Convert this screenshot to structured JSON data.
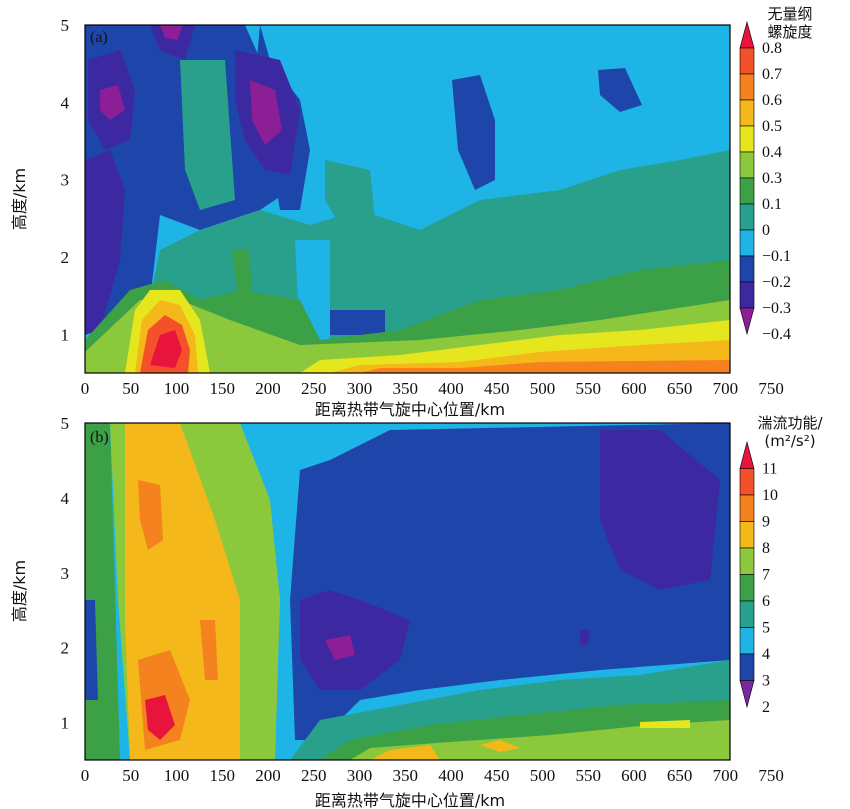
{
  "chart_data": [
    {
      "type": "heatmap",
      "panel_label": "(a)",
      "xlabel": "距离热带气旋中心位置/km",
      "ylabel": "高度/km",
      "xlim": [
        0,
        750
      ],
      "ylim": [
        0.5,
        5
      ],
      "xticks": [
        "0",
        "50",
        "100",
        "150",
        "200",
        "250",
        "300",
        "350",
        "400",
        "450",
        "500",
        "550",
        "600",
        "650",
        "700",
        "750"
      ],
      "yticks": [
        "1",
        "2",
        "3",
        "4",
        "5"
      ],
      "colorbar": {
        "title_lines": [
          "无量纲",
          "螺旋度"
        ],
        "labels": [
          "0.8",
          "0.7",
          "0.6",
          "0.5",
          "0.4",
          "0.3",
          "0.1",
          "0",
          "−0.1",
          "−0.2",
          "−0.3",
          "−0.4"
        ],
        "colors": [
          "#e8143c",
          "#f4502a",
          "#f4821e",
          "#f4b81a",
          "#e6e61e",
          "#8cc83c",
          "#3ca046",
          "#28a08c",
          "#1eb4e6",
          "#1e46aa",
          "#3c28a0",
          "#8c1e96"
        ]
      }
    },
    {
      "type": "heatmap",
      "panel_label": "(b)",
      "xlabel": "距离热带气旋中心位置/km",
      "ylabel": "高度/km",
      "xlim": [
        0,
        750
      ],
      "ylim": [
        0.5,
        5
      ],
      "xticks": [
        "0",
        "50",
        "100",
        "150",
        "200",
        "250",
        "300",
        "350",
        "400",
        "450",
        "500",
        "550",
        "600",
        "650",
        "700",
        "750"
      ],
      "yticks": [
        "1",
        "2",
        "3",
        "4",
        "5"
      ],
      "colorbar": {
        "title_lines": [
          "湍流功能/",
          "(m²/s²)"
        ],
        "labels": [
          "11",
          "10",
          "9",
          "8",
          "7",
          "6",
          "5",
          "4",
          "3",
          "2"
        ],
        "colors": [
          "#e8143c",
          "#f4502a",
          "#f4821e",
          "#f4b81a",
          "#8cc83c",
          "#3ca046",
          "#28a08c",
          "#1eb4e6",
          "#1e46aa",
          "#7a28a0"
        ]
      }
    }
  ]
}
